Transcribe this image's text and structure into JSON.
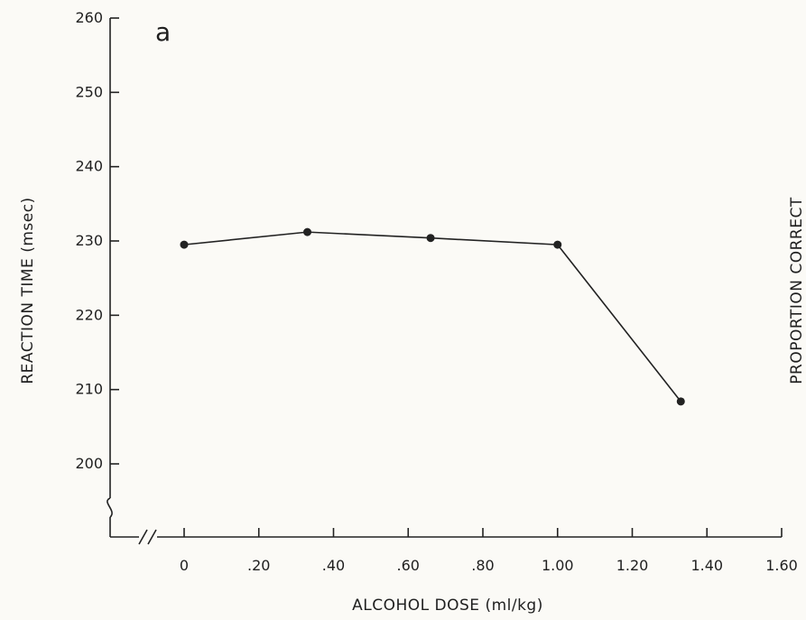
{
  "chart_data": {
    "type": "line",
    "panel_label": "a",
    "xlabel": "ALCOHOL DOSE (ml/kg)",
    "ylabel": "REACTION TIME (msec)",
    "right_axis_label": "PROPORTION CORRECT",
    "x_tick_labels": [
      "0",
      ".20",
      ".40",
      ".60",
      ".80",
      "1.00",
      "1.20",
      "1.40",
      "1.60"
    ],
    "x_ticks": [
      0,
      0.2,
      0.4,
      0.6,
      0.8,
      1.0,
      1.2,
      1.4,
      1.6
    ],
    "y_tick_labels": [
      "200",
      "210",
      "220",
      "230",
      "240",
      "250",
      "260"
    ],
    "y_ticks": [
      200,
      210,
      220,
      230,
      240,
      250,
      260
    ],
    "xlim": [
      0,
      1.6
    ],
    "ylim": [
      200,
      260
    ],
    "axis_breaks": [
      "x",
      "y"
    ],
    "grid": false,
    "series": [
      {
        "x": [
          0,
          0.33,
          0.66,
          1.0,
          1.33
        ],
        "y": [
          229.5,
          231.2,
          230.4,
          229.5,
          208.4
        ]
      }
    ]
  }
}
